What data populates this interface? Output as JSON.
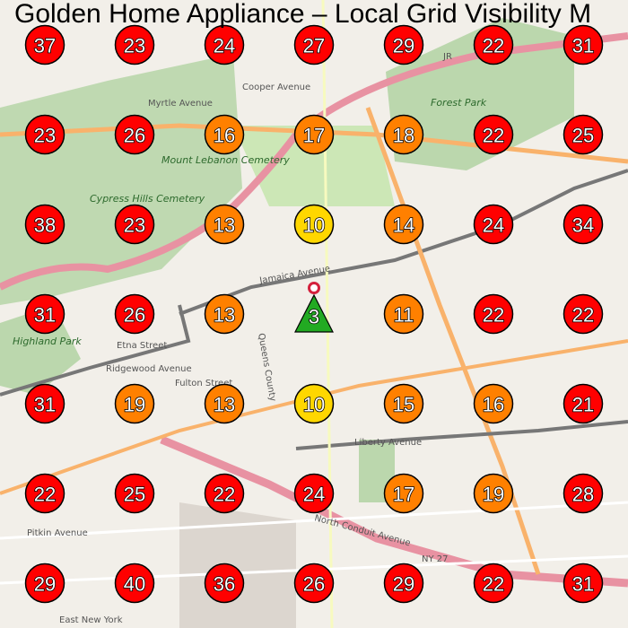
{
  "title": "Golden Home Appliance – Local Grid Visibility M",
  "colors": {
    "high": "#ff0000",
    "mid": "#ff8000",
    "low": "#ffd700",
    "business": "#22aa22",
    "pin": "#d4213d",
    "land": "#f2efe9",
    "park": "#add19e",
    "road_major": "#f9b26b",
    "highway": "#e892a2",
    "rail": "#777777"
  },
  "grid": {
    "rows": [
      [
        37,
        23,
        24,
        27,
        29,
        22,
        31
      ],
      [
        23,
        26,
        16,
        17,
        18,
        22,
        25
      ],
      [
        38,
        23,
        13,
        10,
        14,
        24,
        34
      ],
      [
        31,
        26,
        13,
        null,
        11,
        22,
        22
      ],
      [
        31,
        19,
        13,
        10,
        15,
        16,
        21
      ],
      [
        22,
        25,
        22,
        24,
        17,
        19,
        28
      ],
      [
        29,
        40,
        36,
        26,
        29,
        22,
        31
      ]
    ]
  },
  "business_marker": {
    "rank": "3",
    "icon": "triangle-marker",
    "pin_icon": "location-pin"
  },
  "map_labels": {
    "jamaica_ave": "Jamaica Avenue",
    "myrtle_ave": "Myrtle Avenue",
    "cypress": "Cypress Hills Cemetery",
    "lebanon": "Mount Lebanon Cemetery",
    "forest_park": "Forest Park",
    "liberty_ave": "Liberty Avenue",
    "pitkin_ave": "Pitkin Avenue",
    "east_ny": "East New York",
    "ridgewood_ave": "Ridgewood Avenue",
    "fulton_st": "Fulton Street",
    "etna_st": "Etna Street",
    "conduit": "North Conduit Avenue",
    "ny27": "NY 27",
    "highland": "Highland Park",
    "jr": "JR",
    "cooper": "Cooper Avenue",
    "queens": "Queens County"
  }
}
